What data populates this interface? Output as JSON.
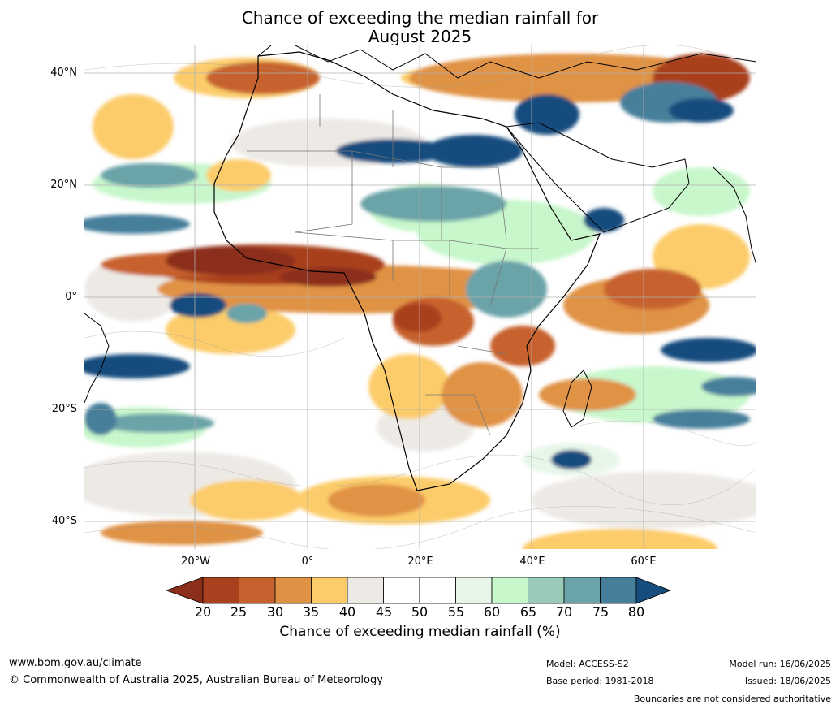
{
  "title": {
    "line1": "Chance of exceeding the median rainfall for",
    "line2": "August 2025"
  },
  "axes": {
    "lat_labels": [
      "40°N",
      "20°N",
      "0°",
      "20°S",
      "40°S"
    ],
    "lon_labels": [
      "20°W",
      "0°",
      "20°E",
      "40°E",
      "60°E"
    ]
  },
  "colorbar": {
    "ticks": [
      "20",
      "25",
      "30",
      "35",
      "40",
      "45",
      "50",
      "55",
      "60",
      "65",
      "70",
      "75",
      "80"
    ],
    "colors": [
      "#8b2e1a",
      "#a9411f",
      "#c7622f",
      "#e09244",
      "#fccc6a",
      "#edeae6",
      "#ffffff",
      "#ffffff",
      "#e8f6ea",
      "#c8f7cc",
      "#98ccb8",
      "#6aa3a8",
      "#477f9b",
      "#174c7e"
    ],
    "label": "Chance of exceeding median rainfall (%)"
  },
  "footer": {
    "url": "www.bom.gov.au/climate",
    "copyright": "© Commonwealth of Australia 2025, Australian Bureau of Meteorology",
    "model": "Model: ACCESS-S2",
    "base_period": "Base period: 1981-2018",
    "model_run": "Model run: 16/06/2025",
    "issued": "Issued: 18/06/2025",
    "disclaimer": "Boundaries are not considered authoritative"
  }
}
